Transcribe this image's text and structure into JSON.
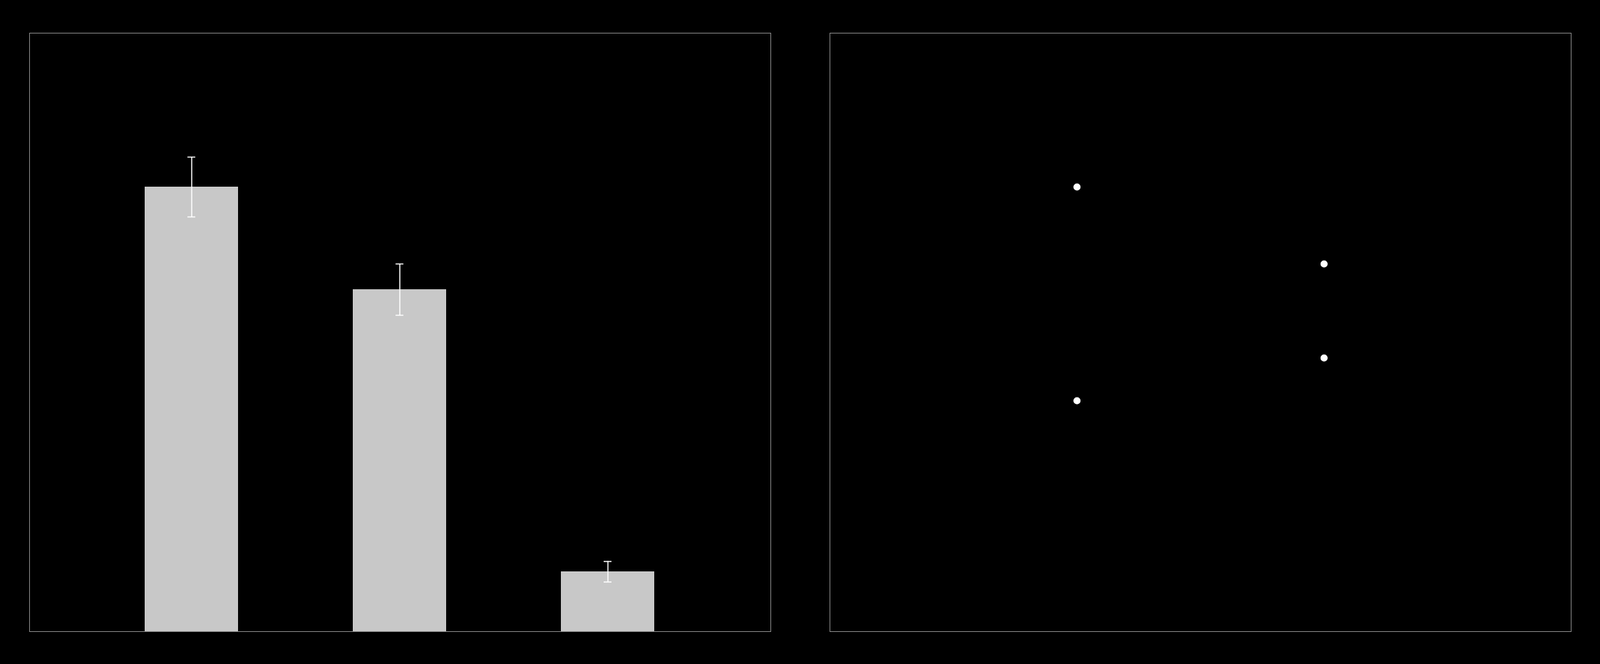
{
  "chart_data": [
    {
      "type": "bar",
      "categories": [
        null,
        null,
        null
      ],
      "values": [
        5.2,
        4.0,
        0.7
      ],
      "errors": [
        0.35,
        0.3,
        0.12
      ],
      "color": "#c8c8c8",
      "ylim": [
        0,
        7
      ],
      "tick_labels": false
    },
    {
      "type": "scatter",
      "x": [
        5,
        10,
        5,
        10
      ],
      "values": [
        5.2,
        4.3,
        2.7,
        3.2
      ],
      "color": "#ffffff",
      "xlim": [
        0,
        15
      ],
      "ylim": [
        0,
        7
      ],
      "tick_labels": false
    }
  ]
}
